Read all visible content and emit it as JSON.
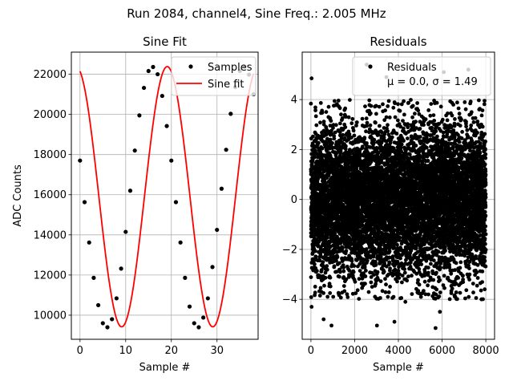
{
  "figure": {
    "suptitle": "Run 2084, channel4, Sine Freq.: 2.005 MHz"
  },
  "chart_data": [
    {
      "type": "line",
      "title": "Sine Fit",
      "xlabel": "Sample #",
      "ylabel": "ADC Counts",
      "xlim": [
        -1.9,
        39.0
      ],
      "ylim": [
        8800,
        23100
      ],
      "xticks": [
        "0",
        "10",
        "20",
        "30"
      ],
      "yticks": [
        "10000",
        "12000",
        "14000",
        "16000",
        "18000",
        "20000",
        "22000"
      ],
      "grid": true,
      "legend_position": "top-right",
      "series": [
        {
          "name": "Samples",
          "style": "markers",
          "color": "#000000",
          "x": [
            0,
            1,
            2,
            3,
            4,
            5,
            6,
            7,
            8,
            9,
            10,
            11,
            12,
            13,
            14,
            15,
            16,
            17,
            18,
            19,
            20,
            21,
            22,
            23,
            24,
            25,
            26,
            27,
            28,
            29,
            30,
            31,
            32,
            33,
            34,
            35,
            36,
            37,
            38
          ],
          "y": [
            17700,
            15630,
            13620,
            11860,
            10500,
            9600,
            9400,
            9800,
            10840,
            12320,
            14150,
            16200,
            18200,
            19950,
            21320,
            22160,
            22360,
            22000,
            20920,
            19420,
            17700,
            15630,
            13620,
            11860,
            10430,
            9600,
            9400,
            9880,
            10840,
            12400,
            14250,
            16300,
            18240,
            20030,
            21360,
            22160,
            22380,
            21980,
            21000
          ]
        },
        {
          "name": "Sine fit",
          "style": "line",
          "color": "#ff0000",
          "model": {
            "offset": 15900,
            "amplitude": 6480,
            "period_samples": 19.95,
            "phase": 1.84
          },
          "x_range": [
            0,
            38
          ]
        }
      ]
    },
    {
      "type": "scatter",
      "title": "Residuals",
      "xlabel": "Sample #",
      "ylabel": "",
      "xlim": [
        -400,
        8400
      ],
      "ylim": [
        -5.6,
        5.9
      ],
      "xticks": [
        "0",
        "2000",
        "4000",
        "6000",
        "8000"
      ],
      "yticks": [
        "−4",
        "−2",
        "0",
        "2",
        "4"
      ],
      "grid": true,
      "legend_position": "top-right",
      "series": [
        {
          "name": "Residuals",
          "color": "#000000",
          "n_points": 8000,
          "mean": 0.0,
          "std": 1.49,
          "x_range": [
            0,
            8000
          ],
          "outliers": [
            [
              30,
              4.85
            ],
            [
              30,
              -4.3
            ],
            [
              580,
              -4.8
            ],
            [
              940,
              -5.05
            ],
            [
              2550,
              5.4
            ],
            [
              3020,
              -5.05
            ],
            [
              3450,
              4.9
            ],
            [
              3820,
              -4.9
            ],
            [
              4320,
              -4.1
            ],
            [
              5700,
              -5.15
            ],
            [
              5900,
              -4.5
            ],
            [
              6080,
              5.1
            ],
            [
              7200,
              5.2
            ],
            [
              7800,
              -4.0
            ]
          ]
        }
      ],
      "legend_label": "Residuals",
      "legend_stats": "μ = 0.0, σ = 1.49"
    }
  ]
}
